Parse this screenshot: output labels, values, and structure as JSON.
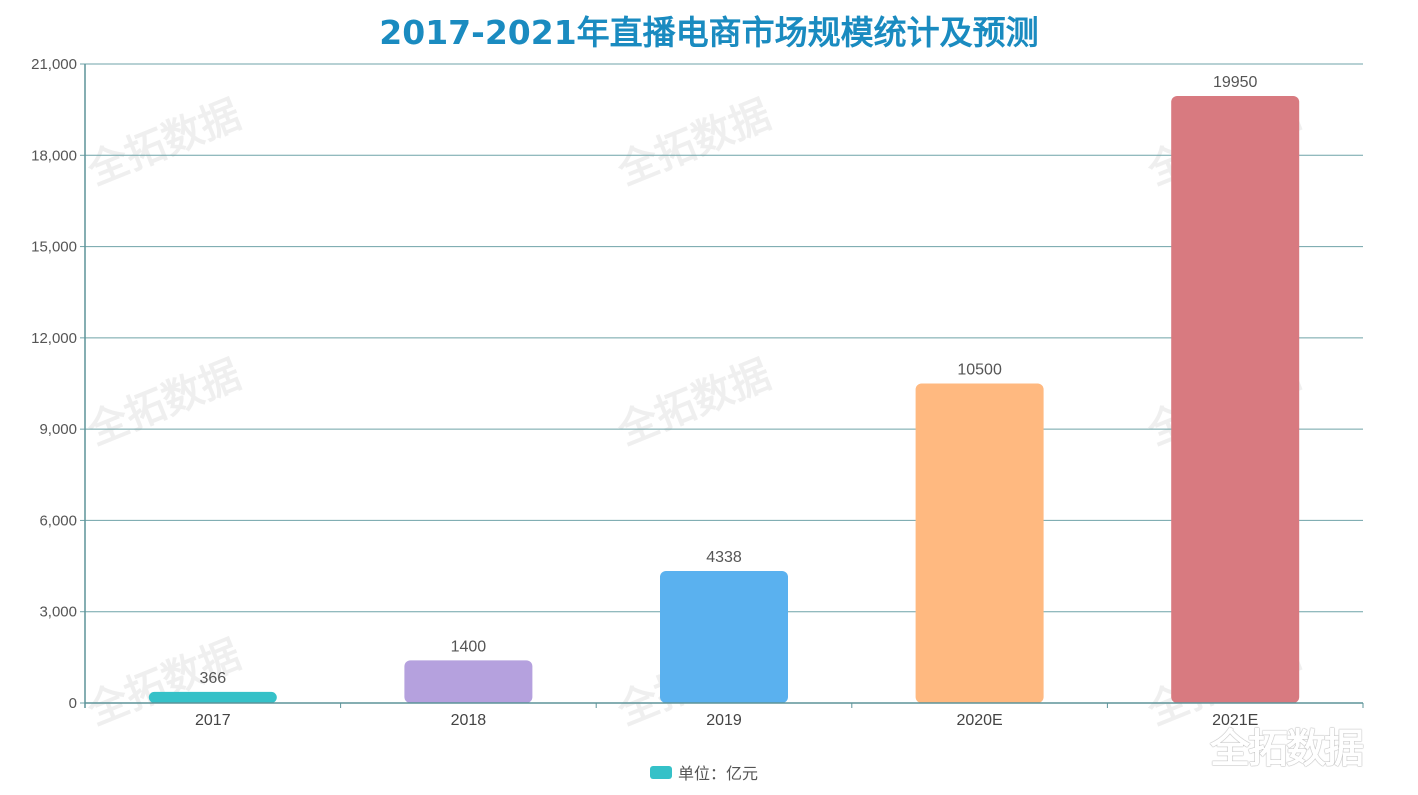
{
  "header": {
    "title": "2017-2021年直播电商市场规模统计及预测"
  },
  "legend": {
    "label": "单位：亿元",
    "color": "#35c1c8"
  },
  "watermark": {
    "text": "全拓数据"
  },
  "chart_data": {
    "type": "bar",
    "title": "2017-2021年直播电商市场规模统计及预测",
    "xlabel": "",
    "ylabel": "",
    "unit": "亿元",
    "categories": [
      "2017",
      "2018",
      "2019",
      "2020E",
      "2021E"
    ],
    "values": [
      366,
      1400,
      4338,
      10500,
      19950
    ],
    "colors": [
      "#35c1c8",
      "#b5a1de",
      "#5ab1ef",
      "#ffb980",
      "#d87a80"
    ],
    "data_labels": [
      "366",
      "1400",
      "4338",
      "10500",
      "19950"
    ],
    "ylim": [
      0,
      21000
    ],
    "yticks": [
      0,
      3000,
      6000,
      9000,
      12000,
      15000,
      18000,
      21000
    ],
    "ytick_labels": [
      "0",
      "3,000",
      "6,000",
      "9,000",
      "12,000",
      "15,000",
      "18,000",
      "21,000"
    ],
    "grid": true,
    "legend_position": "bottom-center",
    "legend": [
      "单位：亿元"
    ]
  }
}
